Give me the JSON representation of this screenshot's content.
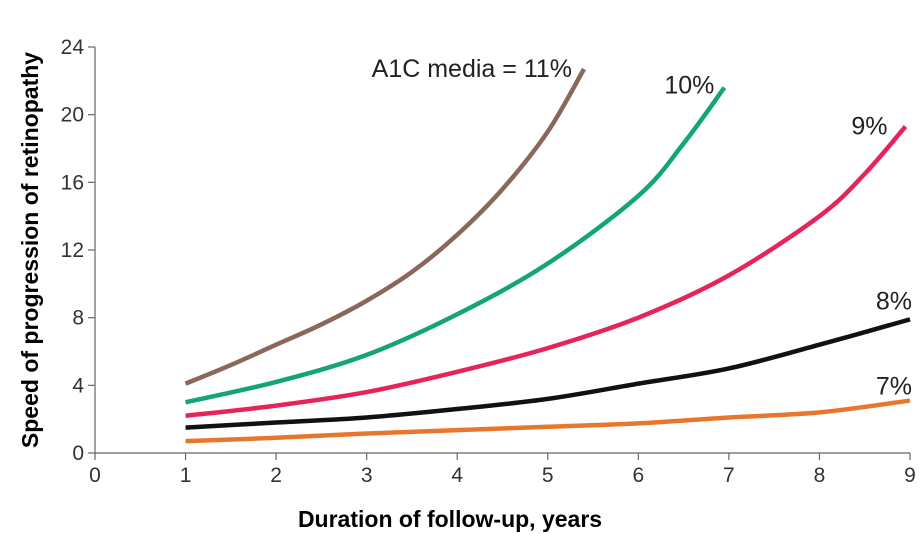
{
  "chart_data": {
    "type": "line",
    "title": "",
    "xlabel": "Duration of follow-up, years",
    "ylabel": "Speed of progression of retinopathy",
    "xlim": [
      0,
      9
    ],
    "ylim": [
      0,
      24
    ],
    "x_ticks": [
      0,
      1,
      2,
      3,
      4,
      5,
      6,
      7,
      8,
      9
    ],
    "y_ticks": [
      0,
      4,
      8,
      12,
      16,
      20,
      24
    ],
    "grid": false,
    "legend": "none",
    "series": [
      {
        "name": "A1C media = 11%",
        "color": "#8a675a",
        "x": [
          1,
          1.5,
          2,
          2.5,
          3,
          3.5,
          4,
          4.5,
          5,
          5.4
        ],
        "y": [
          4.1,
          5.2,
          6.4,
          7.6,
          9.0,
          10.7,
          12.9,
          15.6,
          19.0,
          22.7
        ]
      },
      {
        "name": "10%",
        "color": "#13a576",
        "x": [
          1,
          2,
          3,
          4,
          5,
          6,
          6.5,
          6.95
        ],
        "y": [
          3.0,
          4.2,
          5.8,
          8.2,
          11.2,
          15.2,
          18.3,
          21.6
        ]
      },
      {
        "name": "9%",
        "color": "#e6245a",
        "x": [
          1,
          2,
          3,
          4,
          5,
          6,
          7,
          8,
          8.5,
          8.95
        ],
        "y": [
          2.2,
          2.8,
          3.6,
          4.8,
          6.2,
          8.0,
          10.5,
          14.0,
          16.5,
          19.3
        ]
      },
      {
        "name": "8%",
        "color": "#111111",
        "x": [
          1,
          2,
          3,
          4,
          5,
          6,
          7,
          8,
          9
        ],
        "y": [
          1.5,
          1.8,
          2.1,
          2.6,
          3.2,
          4.1,
          5.0,
          6.4,
          7.9
        ]
      },
      {
        "name": "7%",
        "color": "#e8772e",
        "x": [
          1,
          2,
          3,
          4,
          5,
          6,
          7,
          8,
          9
        ],
        "y": [
          0.7,
          0.9,
          1.15,
          1.35,
          1.55,
          1.75,
          2.1,
          2.4,
          3.1
        ]
      }
    ]
  }
}
